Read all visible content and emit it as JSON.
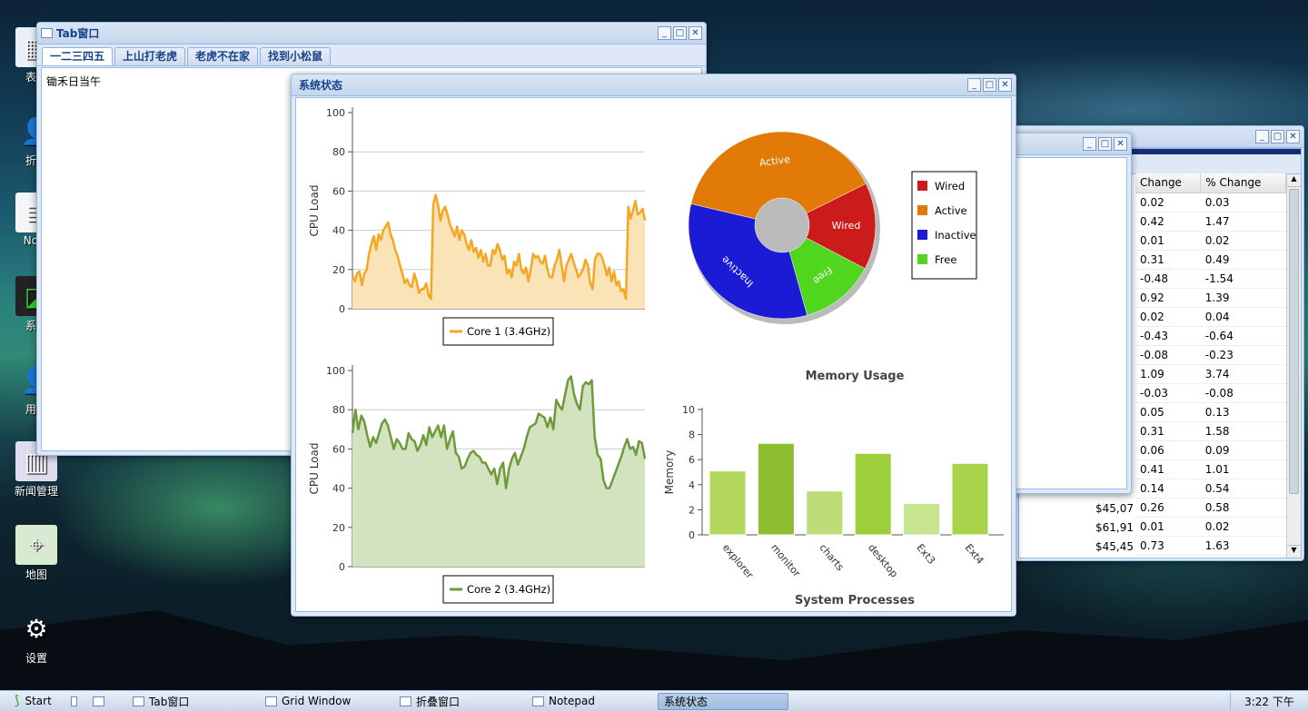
{
  "desktop": {
    "icons": [
      {
        "label": "表单",
        "icon": "table-icon"
      },
      {
        "label": "折叠",
        "icon": "user-icon"
      },
      {
        "label": "Note",
        "icon": "notepad-icon"
      },
      {
        "label": "系统",
        "icon": "monitor-icon"
      },
      {
        "label": "用户",
        "icon": "user-icon"
      },
      {
        "label": "新闻管理",
        "icon": "news-icon"
      },
      {
        "label": "地图",
        "icon": "map-icon"
      },
      {
        "label": "设置",
        "icon": "gear-icon"
      }
    ]
  },
  "tab_window": {
    "title": "Tab窗口",
    "tabs": [
      "一二三四五",
      "上山打老虎",
      "老虎不在家",
      "找到小松鼠"
    ],
    "content": "锄禾日当午"
  },
  "grid_window": {
    "headers": [
      "Change",
      "% Change"
    ],
    "rows": [
      {
        "price": "",
        "change": "0.02",
        "pct": "0.03"
      },
      {
        "price": "",
        "change": "0.42",
        "pct": "1.47"
      },
      {
        "price": "",
        "change": "0.01",
        "pct": "0.02"
      },
      {
        "price": "",
        "change": "0.31",
        "pct": "0.49"
      },
      {
        "price": "",
        "change": "-0.48",
        "pct": "-1.54"
      },
      {
        "price": "",
        "change": "0.92",
        "pct": "1.39"
      },
      {
        "price": "",
        "change": "0.02",
        "pct": "0.04"
      },
      {
        "price": "",
        "change": "-0.43",
        "pct": "-0.64"
      },
      {
        "price": "",
        "change": "-0.08",
        "pct": "-0.23"
      },
      {
        "price": "",
        "change": "1.09",
        "pct": "3.74"
      },
      {
        "price": "",
        "change": "-0.03",
        "pct": "-0.08"
      },
      {
        "price": "",
        "change": "0.05",
        "pct": "0.13"
      },
      {
        "price": "",
        "change": "0.31",
        "pct": "1.58"
      },
      {
        "price": "",
        "change": "0.06",
        "pct": "0.09"
      },
      {
        "price": "",
        "change": "0.41",
        "pct": "1.01"
      },
      {
        "price": "",
        "change": "0.14",
        "pct": "0.54"
      },
      {
        "price": "$45,07",
        "change": "0.26",
        "pct": "0.58"
      },
      {
        "price": "$61,91",
        "change": "0.01",
        "pct": "0.02"
      },
      {
        "price": "$45,45",
        "change": "0.73",
        "pct": "1.63"
      }
    ]
  },
  "system_window": {
    "title": "系统状态"
  },
  "chart_data": [
    {
      "type": "area",
      "ylabel": "CPU Load",
      "ylim": [
        0,
        100
      ],
      "yticks": [
        0,
        20,
        40,
        60,
        80,
        100
      ],
      "series": [
        {
          "name": "Core 1 (3.4GHz)",
          "color": "#f5a623",
          "values": [
            17,
            14,
            18,
            19,
            12,
            18,
            20,
            28,
            33,
            37,
            30,
            38,
            35,
            40,
            42,
            44,
            38,
            35,
            30,
            27,
            22,
            18,
            13,
            15,
            12,
            11,
            18,
            14,
            8,
            10,
            10,
            13,
            7,
            5,
            53,
            58,
            53,
            45,
            50,
            52,
            48,
            43,
            40,
            37,
            42,
            35,
            40,
            38,
            33,
            30,
            35,
            29,
            31,
            26,
            30,
            24,
            28,
            22,
            22,
            30,
            28,
            33,
            30,
            25,
            27,
            18,
            20,
            16,
            24,
            22,
            28,
            20,
            18,
            21,
            14,
            20,
            28,
            26,
            27,
            24,
            23,
            27,
            20,
            16,
            16,
            22,
            25,
            30,
            22,
            14,
            22,
            25,
            28,
            24,
            20,
            16,
            18,
            20,
            25,
            22,
            13,
            10,
            25,
            28,
            28,
            26,
            22,
            17,
            21,
            14,
            19,
            12,
            14,
            9,
            10,
            5,
            52,
            46,
            50,
            55,
            48,
            49,
            51,
            45
          ]
        }
      ],
      "legend": "bottom"
    },
    {
      "type": "area",
      "ylabel": "CPU Load",
      "ylim": [
        0,
        100
      ],
      "yticks": [
        0,
        20,
        40,
        60,
        80,
        100
      ],
      "series": [
        {
          "name": "Core 2 (3.4GHz)",
          "color": "#6d9a3a",
          "values": [
            68,
            80,
            70,
            77,
            74,
            67,
            61,
            66,
            63,
            68,
            73,
            75,
            72,
            66,
            60,
            65,
            63,
            60,
            60,
            68,
            65,
            64,
            59,
            62,
            67,
            62,
            71,
            66,
            69,
            72,
            66,
            72,
            60,
            65,
            69,
            58,
            56,
            50,
            51,
            55,
            58,
            59,
            57,
            56,
            53,
            53,
            50,
            47,
            50,
            42,
            50,
            53,
            40,
            50,
            55,
            58,
            52,
            56,
            60,
            66,
            71,
            72,
            73,
            78,
            77,
            76,
            71,
            76,
            70,
            85,
            82,
            80,
            88,
            95,
            97,
            88,
            83,
            80,
            92,
            94,
            93,
            95,
            66,
            57,
            55,
            44,
            40,
            40,
            44,
            48,
            52,
            56,
            61,
            65,
            60,
            61,
            57,
            64,
            63,
            55
          ]
        }
      ],
      "legend": "bottom"
    },
    {
      "type": "pie",
      "donut": true,
      "slices": [
        {
          "name": "Wired",
          "value": 15,
          "color": "#cc1b1b"
        },
        {
          "name": "Free",
          "value": 13,
          "color": "#50d61f"
        },
        {
          "name": "Inactive",
          "value": 33,
          "color": "#1b1bd6"
        },
        {
          "name": "Active",
          "value": 39,
          "color": "#e17a07"
        }
      ],
      "legend_order": [
        "Wired",
        "Active",
        "Inactive",
        "Free"
      ],
      "legend": "right"
    },
    {
      "type": "bar",
      "title": "Memory Usage",
      "xlabel": "System Processes",
      "ylabel": "Memory",
      "ylim": [
        0,
        10
      ],
      "yticks": [
        0,
        2,
        4,
        6,
        8,
        10
      ],
      "categories": [
        "explorer",
        "monitor",
        "charts",
        "desktop",
        "Ext3",
        "Ext4"
      ],
      "values": [
        5.1,
        7.3,
        3.5,
        6.5,
        2.5,
        5.7
      ],
      "colors": [
        "#b3d75c",
        "#8cbe30",
        "#bddc78",
        "#9ccf3a",
        "#c7e48e",
        "#a8d34b"
      ]
    }
  ],
  "taskbar": {
    "start": "Start",
    "items": [
      "Tab窗口",
      "Grid Window",
      "折叠窗口",
      "Notepad",
      "系统状态"
    ],
    "active": "系统状态",
    "clock": "3:22 下午"
  }
}
